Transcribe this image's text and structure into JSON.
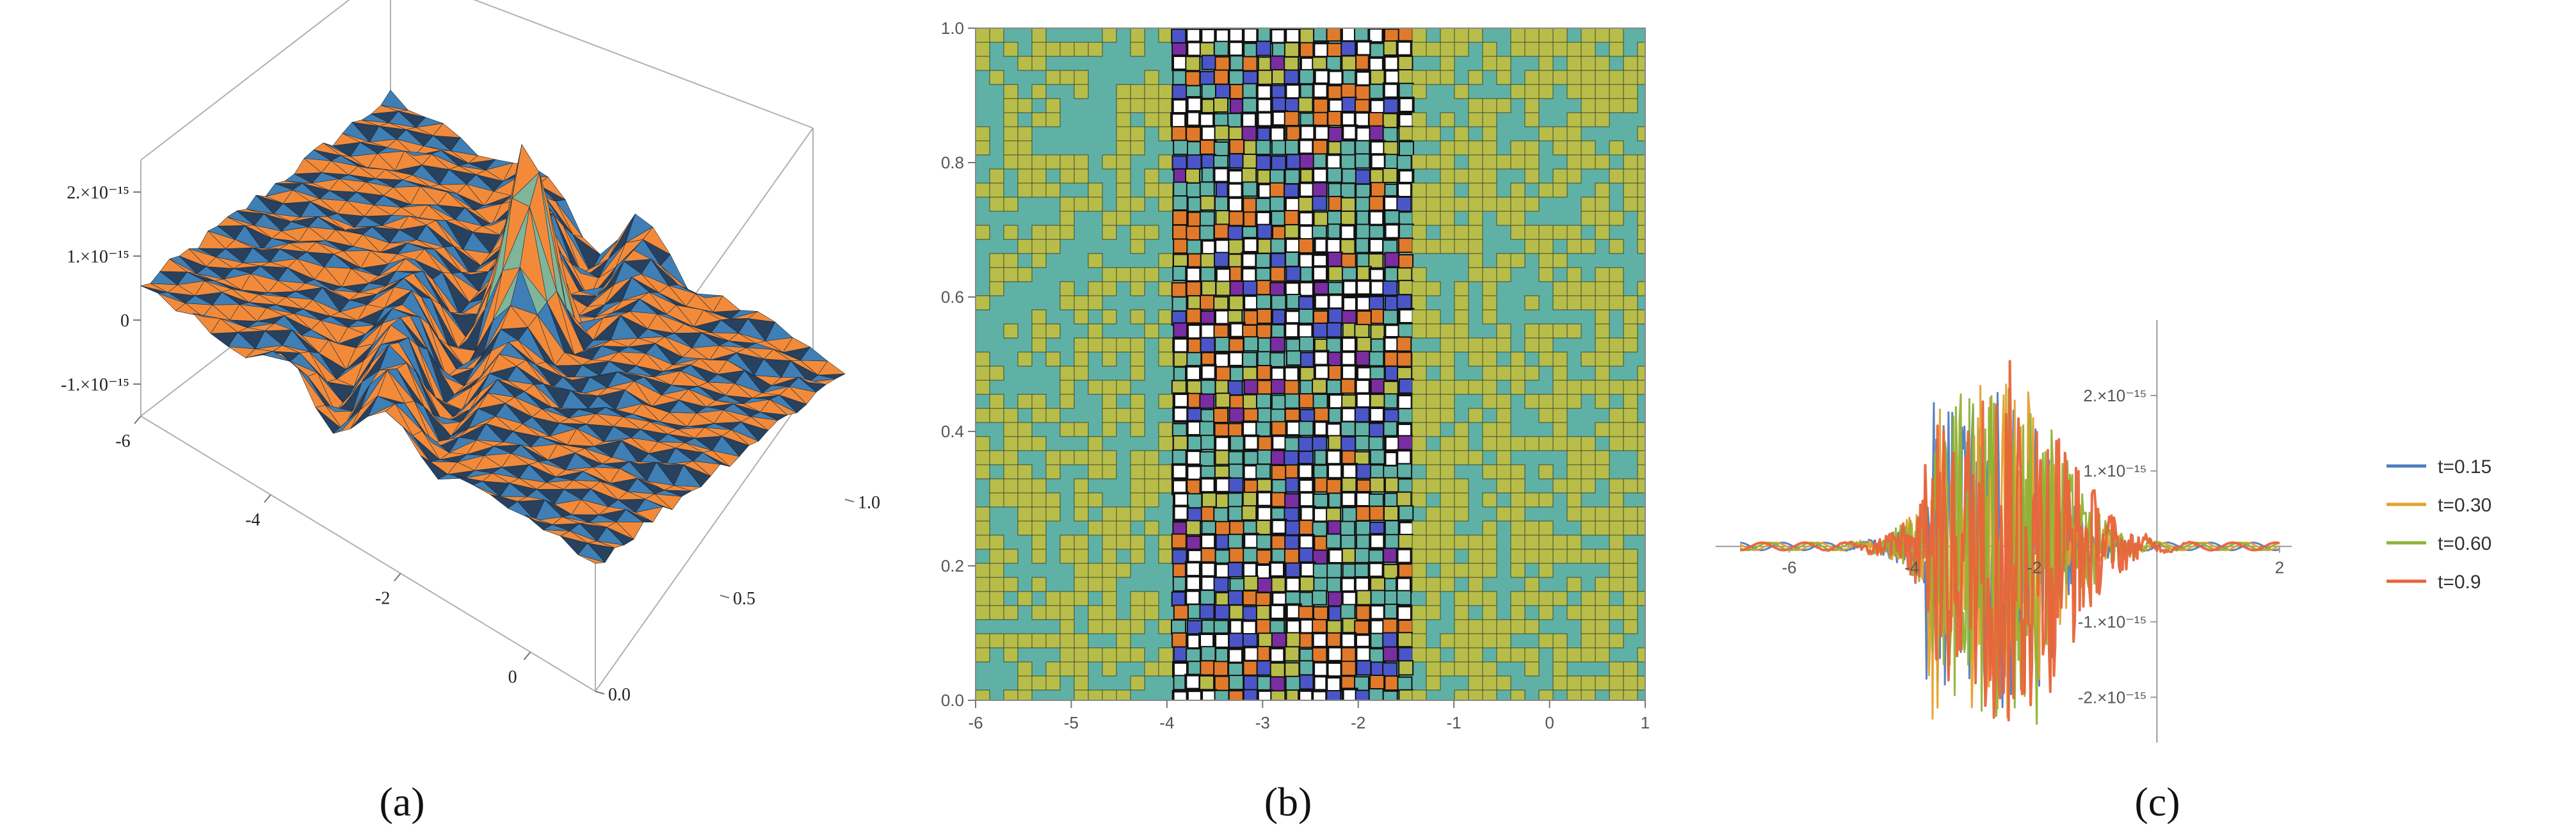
{
  "panels": [
    {
      "id": "a",
      "caption": "(a)",
      "chart_data": {
        "type": "surface3d",
        "x_ticks": [
          "-6",
          "-4",
          "-2",
          "0"
        ],
        "y_ticks": [
          "0.0",
          "0.5",
          "1.0"
        ],
        "z_ticks": [
          "2.×10⁻¹⁵",
          "1.×10⁻¹⁵",
          "0",
          "-1.×10⁻¹⁵"
        ],
        "xlim": [
          -6,
          1
        ],
        "ylim": [
          0,
          1
        ],
        "zlim": [
          -1.5e-15,
          2.5e-15
        ],
        "colors": {
          "face_light": "#f28a3a",
          "face_dark": "#27415e",
          "face_mid": "#3f7fb5",
          "peak": "#7fb59a"
        }
      }
    },
    {
      "id": "b",
      "caption": "(b)",
      "chart_data": {
        "type": "contour",
        "x_ticks": [
          -6,
          -5,
          -4,
          -3,
          -2,
          -1,
          0,
          1
        ],
        "y_ticks": [
          "0.0",
          "0.2",
          "0.4",
          "0.6",
          "0.8",
          "1.0"
        ],
        "xlim": [
          -6,
          1
        ],
        "ylim": [
          0,
          1
        ],
        "noisy_band_x": [
          -4,
          -1.5
        ],
        "colors": {
          "teal": "#5fb1a6",
          "olive": "#b8bd4a",
          "blue": "#4a56c8",
          "purple": "#7a2da0",
          "orange": "#e07a2a",
          "black": "#111111",
          "white": "#ffffff"
        }
      }
    },
    {
      "id": "c",
      "caption": "(c)",
      "chart_data": {
        "type": "line",
        "x_ticks": [
          "-6",
          "-4",
          "-2",
          "2"
        ],
        "y_ticks": [
          "2.×10⁻¹⁵",
          "1.×10⁻¹⁵",
          "-1.×10⁻¹⁵",
          "-2.×10⁻¹⁵"
        ],
        "xlim": [
          -7.2,
          2.2
        ],
        "ylim": [
          -2.6e-15,
          3e-15
        ],
        "series": [
          {
            "name": "t=0.15",
            "color": "#4f7cc0"
          },
          {
            "name": "t=0.30",
            "color": "#e5a02a"
          },
          {
            "name": "t=0.60",
            "color": "#8fb236"
          },
          {
            "name": "t=0.9",
            "color": "#e8643a"
          }
        ]
      }
    }
  ]
}
